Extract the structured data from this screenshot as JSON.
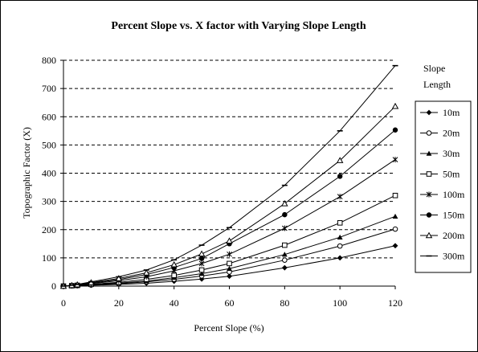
{
  "chart_data": {
    "type": "line",
    "title": "Percent Slope vs. X factor with Varying Slope Length",
    "xlabel": "Percent Slope (%)",
    "ylabel": "Topographic Factor (X)",
    "xlim": [
      0,
      120
    ],
    "ylim": [
      0,
      800
    ],
    "x_ticks": [
      0,
      20,
      40,
      60,
      80,
      100,
      120
    ],
    "y_ticks": [
      0,
      100,
      200,
      300,
      400,
      500,
      600,
      700,
      800
    ],
    "grid": "horizontal dashed",
    "legend": {
      "title": "Slope Length",
      "placement": "right"
    },
    "x": [
      0,
      3,
      5,
      10,
      20,
      30,
      40,
      50,
      60,
      80,
      100,
      120
    ],
    "series": [
      {
        "name": "10m",
        "marker": "diamond",
        "values": [
          0,
          0.6,
          1.1,
          2.8,
          6,
          10,
          17,
          25,
          35,
          65,
          100,
          143
        ]
      },
      {
        "name": "20m",
        "marker": "circle-open",
        "values": [
          0,
          0.8,
          1.5,
          3.9,
          8.5,
          15,
          24,
          36,
          50,
          92,
          142,
          202
        ]
      },
      {
        "name": "30m",
        "marker": "triangle",
        "values": [
          0,
          1.0,
          1.8,
          4.8,
          10.5,
          18,
          30,
          44,
          62,
          112,
          173,
          247
        ]
      },
      {
        "name": "50m",
        "marker": "square-open",
        "values": [
          0,
          1.3,
          2.4,
          6.2,
          13.5,
          24,
          38,
          57,
          80,
          145,
          224,
          321
        ]
      },
      {
        "name": "100m",
        "marker": "star",
        "values": [
          0,
          1.8,
          3.4,
          8.8,
          19,
          33,
          54,
          80,
          113,
          205,
          317,
          448
        ]
      },
      {
        "name": "150m",
        "marker": "circle",
        "values": [
          0,
          2.2,
          4.2,
          10.8,
          23,
          41,
          66,
          98,
          150,
          253,
          389,
          553
        ]
      },
      {
        "name": "200m",
        "marker": "triangle-open",
        "values": [
          0,
          2.5,
          4.8,
          12.4,
          27,
          47,
          76,
          114,
          160,
          292,
          445,
          637
        ]
      },
      {
        "name": "300m",
        "marker": "dash",
        "values": [
          0,
          3.1,
          5.9,
          15.2,
          33,
          57,
          93,
          145,
          207,
          357,
          550,
          781
        ]
      }
    ]
  }
}
